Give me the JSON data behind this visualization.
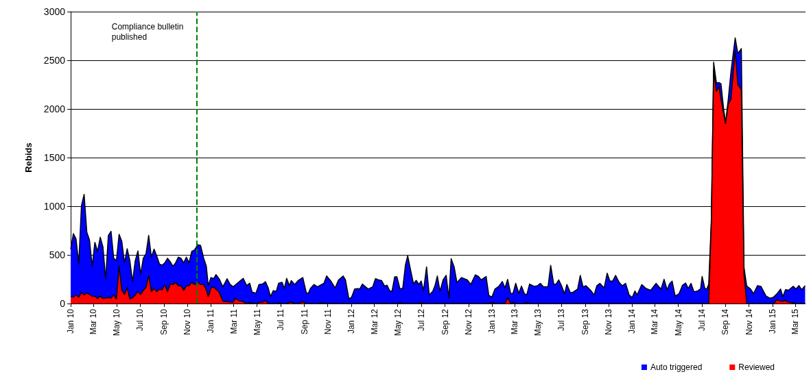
{
  "chart_data": {
    "type": "area",
    "stacked": true,
    "ylabel": "Rebids",
    "ylim": [
      0,
      3000
    ],
    "yticks": [
      0,
      500,
      1000,
      1500,
      2000,
      2500,
      3000
    ],
    "grid": "y",
    "legend": "bottom right",
    "xlim": [
      "2010-01-01",
      "2015-03-28"
    ],
    "xticks": [
      {
        "value": "2010-01-01",
        "label": "Jan 10"
      },
      {
        "value": "2010-03-01",
        "label": "Mar 10"
      },
      {
        "value": "2010-05-01",
        "label": "May 10"
      },
      {
        "value": "2010-07-01",
        "label": "Jul 10"
      },
      {
        "value": "2010-09-01",
        "label": "Sep 10"
      },
      {
        "value": "2010-11-01",
        "label": "Nov 10"
      },
      {
        "value": "2011-01-01",
        "label": "Jan 11"
      },
      {
        "value": "2011-03-01",
        "label": "Mar 11"
      },
      {
        "value": "2011-05-01",
        "label": "May 11"
      },
      {
        "value": "2011-07-01",
        "label": "Jul 11"
      },
      {
        "value": "2011-09-01",
        "label": "Sep 11"
      },
      {
        "value": "2011-11-01",
        "label": "Nov 11"
      },
      {
        "value": "2012-01-01",
        "label": "Jan 12"
      },
      {
        "value": "2012-03-01",
        "label": "Mar 12"
      },
      {
        "value": "2012-05-01",
        "label": "May 12"
      },
      {
        "value": "2012-07-01",
        "label": "Jul 12"
      },
      {
        "value": "2012-09-01",
        "label": "Sep 12"
      },
      {
        "value": "2012-11-01",
        "label": "Nov 12"
      },
      {
        "value": "2013-01-01",
        "label": "Jan 13"
      },
      {
        "value": "2013-03-01",
        "label": "Mar 13"
      },
      {
        "value": "2013-05-01",
        "label": "May 13"
      },
      {
        "value": "2013-07-01",
        "label": "Jul 13"
      },
      {
        "value": "2013-09-01",
        "label": "Sep 13"
      },
      {
        "value": "2013-11-01",
        "label": "Nov 13"
      },
      {
        "value": "2014-01-01",
        "label": "Jan 14"
      },
      {
        "value": "2014-03-01",
        "label": "Mar 14"
      },
      {
        "value": "2014-05-01",
        "label": "May 14"
      },
      {
        "value": "2014-07-01",
        "label": "Jul 14"
      },
      {
        "value": "2014-09-01",
        "label": "Sep 14"
      },
      {
        "value": "2014-11-01",
        "label": "Nov 14"
      },
      {
        "value": "2015-01-01",
        "label": "Jan 15"
      },
      {
        "value": "2015-03-01",
        "label": "Mar 15"
      }
    ],
    "ref_lines": [
      {
        "axis": "x",
        "value": "2010-11-25",
        "label": "Compliance bulletin published",
        "color": "#008000",
        "line_style": "dashed"
      }
    ],
    "x": [
      "2010-01-01",
      "2010-01-08",
      "2010-01-15",
      "2010-01-22",
      "2010-01-29",
      "2010-02-05",
      "2010-02-12",
      "2010-02-19",
      "2010-02-26",
      "2010-03-05",
      "2010-03-12",
      "2010-03-19",
      "2010-03-26",
      "2010-04-02",
      "2010-04-09",
      "2010-04-16",
      "2010-04-23",
      "2010-04-30",
      "2010-05-07",
      "2010-05-14",
      "2010-05-21",
      "2010-05-28",
      "2010-06-04",
      "2010-06-11",
      "2010-06-18",
      "2010-06-25",
      "2010-07-02",
      "2010-07-09",
      "2010-07-16",
      "2010-07-23",
      "2010-07-30",
      "2010-08-06",
      "2010-08-13",
      "2010-08-20",
      "2010-08-27",
      "2010-09-03",
      "2010-09-10",
      "2010-09-17",
      "2010-09-24",
      "2010-10-01",
      "2010-10-08",
      "2010-10-15",
      "2010-10-22",
      "2010-10-29",
      "2010-11-05",
      "2010-11-12",
      "2010-11-19",
      "2010-11-28",
      "2010-12-05",
      "2010-12-13",
      "2010-12-20",
      "2010-12-25",
      "2011-01-01",
      "2011-01-08",
      "2011-01-14",
      "2011-01-23",
      "2011-02-01",
      "2011-02-12",
      "2011-02-20",
      "2011-02-28",
      "2011-03-05",
      "2011-03-14",
      "2011-03-26",
      "2011-04-04",
      "2011-04-12",
      "2011-04-18",
      "2011-04-28",
      "2011-05-06",
      "2011-05-15",
      "2011-05-23",
      "2011-05-30",
      "2011-06-05",
      "2011-06-12",
      "2011-06-20",
      "2011-06-26",
      "2011-07-05",
      "2011-07-11",
      "2011-07-17",
      "2011-07-24",
      "2011-07-29",
      "2011-08-07",
      "2011-08-16",
      "2011-08-28",
      "2011-09-06",
      "2011-09-11",
      "2011-09-17",
      "2011-09-26",
      "2011-10-05",
      "2011-10-16",
      "2011-10-22",
      "2011-10-29",
      "2011-11-09",
      "2011-11-20",
      "2011-11-29",
      "2011-12-11",
      "2011-12-17",
      "2011-12-26",
      "2012-01-02",
      "2012-01-10",
      "2012-01-18",
      "2012-01-23",
      "2012-01-30",
      "2012-02-14",
      "2012-02-26",
      "2012-03-04",
      "2012-03-12",
      "2012-03-20",
      "2012-03-28",
      "2012-04-03",
      "2012-04-10",
      "2012-04-16",
      "2012-04-23",
      "2012-04-29",
      "2012-05-07",
      "2012-05-14",
      "2012-05-21",
      "2012-05-27",
      "2012-06-02",
      "2012-06-11",
      "2012-06-18",
      "2012-06-25",
      "2012-07-01",
      "2012-07-07",
      "2012-07-15",
      "2012-07-22",
      "2012-07-31",
      "2012-08-06",
      "2012-08-12",
      "2012-08-19",
      "2012-08-27",
      "2012-09-04",
      "2012-09-11",
      "2012-09-17",
      "2012-09-25",
      "2012-10-02",
      "2012-10-14",
      "2012-10-29",
      "2012-11-07",
      "2012-11-19",
      "2012-11-27",
      "2012-12-04",
      "2012-12-17",
      "2012-12-24",
      "2013-01-01",
      "2013-01-09",
      "2013-01-19",
      "2013-01-28",
      "2013-02-04",
      "2013-02-11",
      "2013-02-19",
      "2013-02-25",
      "2013-03-04",
      "2013-03-12",
      "2013-03-19",
      "2013-03-27",
      "2013-04-02",
      "2013-04-09",
      "2013-04-21",
      "2013-04-30",
      "2013-05-07",
      "2013-05-15",
      "2013-05-27",
      "2013-06-03",
      "2013-06-11",
      "2013-06-17",
      "2013-06-24",
      "2013-07-01",
      "2013-07-09",
      "2013-07-15",
      "2013-07-24",
      "2013-07-30",
      "2013-08-12",
      "2013-08-19",
      "2013-08-26",
      "2013-09-03",
      "2013-09-15",
      "2013-09-24",
      "2013-10-01",
      "2013-10-09",
      "2013-10-20",
      "2013-10-28",
      "2013-11-04",
      "2013-11-11",
      "2013-11-19",
      "2013-11-28",
      "2013-12-06",
      "2013-12-15",
      "2013-12-24",
      "2014-01-01",
      "2014-01-08",
      "2014-01-14",
      "2014-01-26",
      "2014-02-06",
      "2014-02-18",
      "2014-03-04",
      "2014-03-17",
      "2014-03-25",
      "2014-04-02",
      "2014-04-08",
      "2014-04-15",
      "2014-04-23",
      "2014-05-03",
      "2014-05-12",
      "2014-05-20",
      "2014-05-27",
      "2014-06-03",
      "2014-06-11",
      "2014-06-21",
      "2014-06-28",
      "2014-07-02",
      "2014-07-09",
      "2014-07-14",
      "2014-07-19",
      "2014-07-26",
      "2014-08-01",
      "2014-08-08",
      "2014-08-15",
      "2014-08-20",
      "2014-08-27",
      "2014-09-01",
      "2014-09-08",
      "2014-09-15",
      "2014-09-26",
      "2014-10-03",
      "2014-10-12",
      "2014-10-19",
      "2014-10-26",
      "2014-11-05",
      "2014-11-13",
      "2014-11-23",
      "2014-12-02",
      "2014-12-15",
      "2014-12-26",
      "2015-01-04",
      "2015-01-13",
      "2015-01-22",
      "2015-01-28",
      "2015-02-04",
      "2015-02-12",
      "2015-02-24",
      "2015-03-03",
      "2015-03-11",
      "2015-03-18",
      "2015-03-27"
    ],
    "series": [
      {
        "name": "Reviewed",
        "color": "#ff0000",
        "values": [
          70,
          66,
          89,
          66,
          113,
          89,
          108,
          94,
          75,
          75,
          52,
          77,
          52,
          56,
          61,
          56,
          89,
          47,
          383,
          136,
          94,
          164,
          47,
          59,
          89,
          124,
          94,
          136,
          167,
          289,
          124,
          155,
          124,
          148,
          141,
          195,
          122,
          200,
          195,
          216,
          183,
          183,
          136,
          183,
          183,
          218,
          196,
          220,
          196,
          196,
          140,
          71,
          160,
          172,
          149,
          113,
          24,
          19,
          16,
          14,
          54,
          31,
          19,
          0,
          9,
          5,
          0,
          10,
          14,
          31,
          0,
          0,
          0,
          0,
          7,
          0,
          0,
          0,
          10,
          14,
          0,
          0,
          19,
          0,
          0,
          0,
          0,
          0,
          7,
          0,
          0,
          0,
          0,
          0,
          0,
          0,
          0,
          0,
          0,
          0,
          0,
          0,
          0,
          0,
          0,
          0,
          0,
          0,
          0,
          0,
          0,
          0,
          0,
          7,
          0,
          0,
          0,
          0,
          0,
          0,
          0,
          10,
          0,
          0,
          0,
          0,
          0,
          0,
          0,
          0,
          0,
          0,
          0,
          0,
          0,
          0,
          0,
          0,
          0,
          0,
          0,
          0,
          0,
          10,
          0,
          0,
          0,
          0,
          61,
          0,
          10,
          0,
          0,
          0,
          0,
          10,
          0,
          0,
          0,
          0,
          0,
          0,
          0,
          0,
          0,
          0,
          0,
          0,
          0,
          0,
          0,
          0,
          0,
          0,
          0,
          0,
          0,
          0,
          0,
          0,
          0,
          0,
          0,
          0,
          0,
          0,
          0,
          0,
          0,
          0,
          0,
          0,
          0,
          0,
          0,
          0,
          0,
          0,
          0,
          0,
          0,
          0,
          0,
          0,
          0,
          0,
          0,
          0,
          0,
          0,
          0,
          0,
          0,
          840,
          2400,
          2180,
          2230,
          2100,
          1950,
          1850,
          2050,
          2100,
          2600,
          2250,
          2200,
          300,
          0,
          0,
          0,
          0,
          0,
          0,
          0,
          0,
          42,
          24,
          24,
          31,
          14,
          7,
          0,
          0,
          0,
          0
        ]
      },
      {
        "name": "Auto triggered",
        "color": "#0000ff",
        "values": [
          489,
          652,
          575,
          340,
          892,
          1033,
          627,
          559,
          308,
          554,
          483,
          604,
          530,
          198,
          639,
          686,
          376,
          394,
          328,
          505,
          324,
          399,
          394,
          166,
          352,
          416,
          206,
          329,
          345,
          411,
          353,
          404,
          364,
          258,
          253,
          223,
          343,
          230,
          188,
          202,
          294,
          282,
          282,
          294,
          235,
          317,
          354,
          384,
          401,
          271,
          244,
          113,
          107,
          83,
          148,
          137,
          148,
          236,
          180,
          158,
          136,
          188,
          240,
          184,
          199,
          113,
          106,
          186,
          186,
          193,
          160,
          71,
          132,
          125,
          201,
          219,
          156,
          259,
          174,
          222,
          196,
          236,
          248,
          113,
          101,
          156,
          196,
          172,
          189,
          208,
          283,
          231,
          160,
          243,
          283,
          243,
          47,
          66,
          149,
          153,
          149,
          200,
          149,
          172,
          255,
          243,
          236,
          179,
          189,
          132,
          125,
          274,
          274,
          142,
          156,
          396,
          491,
          373,
          203,
          238,
          196,
          221,
          132,
          377,
          90,
          125,
          184,
          283,
          125,
          243,
          290,
          54,
          462,
          373,
          215,
          267,
          243,
          196,
          295,
          278,
          243,
          278,
          83,
          56,
          149,
          177,
          226,
          160,
          187,
          101,
          96,
          208,
          106,
          179,
          97,
          84,
          200,
          177,
          184,
          208,
          172,
          172,
          392,
          196,
          200,
          243,
          184,
          101,
          196,
          113,
          113,
          148,
          289,
          171,
          183,
          136,
          89,
          183,
          207,
          160,
          312,
          230,
          230,
          289,
          218,
          183,
          207,
          89,
          61,
          129,
          89,
          195,
          155,
          136,
          207,
          148,
          249,
          141,
          202,
          230,
          77,
          101,
          188,
          211,
          155,
          207,
          120,
          131,
          150,
          278,
          156,
          149,
          196,
          20,
          80,
          90,
          40,
          160,
          50,
          10,
          50,
          280,
          130,
          320,
          420,
          70,
          180,
          149,
          101,
          184,
          177,
          78,
          54,
          66,
          59,
          125,
          47,
          111,
          123,
          170,
          149,
          184,
          142,
          184
        ]
      }
    ]
  }
}
